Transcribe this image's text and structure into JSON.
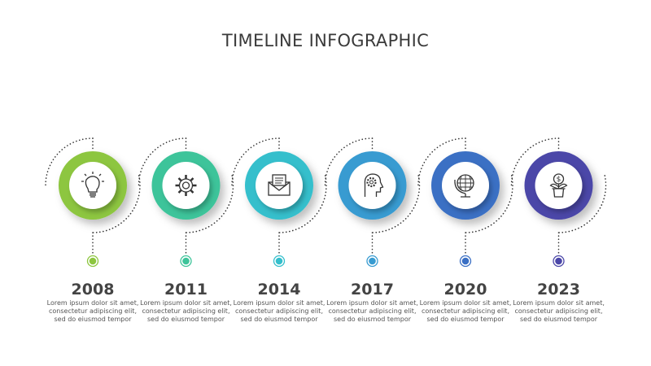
{
  "title": "TIMELINE INFOGRAPHIC",
  "steps": [
    {
      "year": "2008",
      "icon": "lightbulb-icon",
      "color": "#8dc63f",
      "text": "Lorem ipsum dolor sit amet, consectetur adipiscing elit, sed do eiusmod tempor"
    },
    {
      "year": "2011",
      "icon": "gear-icon",
      "color": "#3ec49a",
      "text": "Lorem ipsum dolor sit amet, consectetur adipiscing elit, sed do eiusmod tempor"
    },
    {
      "year": "2014",
      "icon": "envelope-icon",
      "color": "#35bfcc",
      "text": "Lorem ipsum dolor sit amet, consectetur adipiscing elit, sed do eiusmod tempor"
    },
    {
      "year": "2017",
      "icon": "head-gear-icon",
      "color": "#389bd1",
      "text": "Lorem ipsum dolor sit amet, consectetur adipiscing elit, sed do eiusmod tempor"
    },
    {
      "year": "2020",
      "icon": "globe-icon",
      "color": "#3a6fc4",
      "text": "Lorem ipsum dolor sit amet, consectetur adipiscing elit, sed do eiusmod tempor"
    },
    {
      "year": "2023",
      "icon": "money-plant-icon",
      "color": "#4b47a8",
      "text": "Lorem ipsum dolor sit amet, consectetur adipiscing elit, sed do eiusmod tempor"
    }
  ]
}
